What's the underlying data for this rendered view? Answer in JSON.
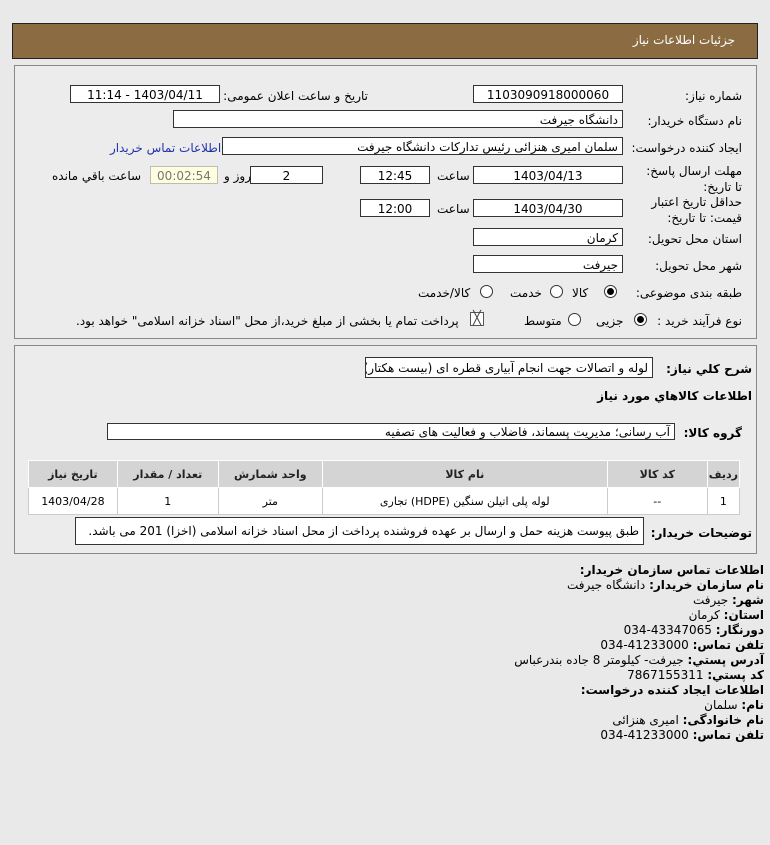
{
  "header": {
    "title": "جزئیات اطلاعات نیاز"
  },
  "form": {
    "need_number_label": "شماره نیاز:",
    "need_number": "1103090918000060",
    "announce_label": "تاریخ و ساعت اعلان عمومی:",
    "announce_value": "1403/04/11 - 11:14",
    "buyer_org_label": "نام دستگاه خریدار:",
    "buyer_org": "دانشگاه جیرفت",
    "creator_label": "ایجاد کننده درخواست:",
    "creator": "سلمان امیری هنزائی رئیس تدارکات دانشگاه جیرفت",
    "contact_link": "اطلاعات تماس خریدار",
    "deadline_label": "مهلت ارسال پاسخ: تا تاریخ:",
    "deadline_date": "1403/04/13",
    "time_label": "ساعت",
    "deadline_time": "12:45",
    "days": "2",
    "days_label": "روز و",
    "remaining": "00:02:54",
    "remaining_label": "ساعت باقي مانده",
    "validity_label": "حداقل تاریخ اعتبار قیمت: تا تاریخ:",
    "validity_date": "1403/04/30",
    "validity_time": "12:00",
    "province_label": "استان محل تحویل:",
    "province": "کرمان",
    "city_label": "شهر محل تحویل:",
    "city": "جیرفت",
    "category_label": "طبقه بندی موضوعی:",
    "category_options": [
      "کالا",
      "خدمت",
      "کالا/خدمت"
    ],
    "category_selected": "کالا",
    "process_label": "نوع فرآیند خرید :",
    "process_options": [
      "جزیی",
      "متوسط"
    ],
    "process_selected": "جزیی",
    "payment_note": "پرداخت تمام یا بخشی از مبلغ خرید،از محل \"اسناد خزانه اسلامی\" خواهد بود."
  },
  "details": {
    "summary_label": "شرح کلي نیاز:",
    "summary": "لوله و اتصالات جهت انجام آبیاری قطره ای (بیست هکتار)",
    "goods_title": "اطلاعات کالاهاي مورد نیاز",
    "group_label": "گروه کالا:",
    "group": "آب رسانی؛ مدیریت پسماند، فاضلاب و فعالیت های تصفیه",
    "table": {
      "headers": [
        "ردیف",
        "کد کالا",
        "نام کالا",
        "واحد شمارش",
        "تعداد / مقدار",
        "تاریخ نیاز"
      ],
      "rows": [
        [
          "1",
          "--",
          "لوله پلی اتیلن سنگین (HDPE) تجاری",
          "متر",
          "1",
          "1403/04/28"
        ]
      ]
    },
    "buyer_notes_label": "توضیحات خریدار:",
    "buyer_notes": "طبق پیوست هزینه حمل و ارسال بر عهده فروشنده پرداخت از محل اسناد خزانه اسلامی (اخزا) 201 می باشد."
  },
  "contact": {
    "title": "اطلاعات تماس سازمان خریدار:",
    "org_k": "نام سازمان خریدار:",
    "org_v": "دانشگاه جیرفت",
    "city_k": "شهر:",
    "city_v": "جیرفت",
    "province_k": "استان:",
    "province_v": "کرمان",
    "fax_k": "دورنگار:",
    "fax_v": "034-43347065",
    "phone_k": "تلفن تماس:",
    "phone_v": "034-41233000",
    "address_k": "آدرس پستي:",
    "address_v": "جیرفت- کیلومتر 8 جاده بندرعباس",
    "postal_k": "کد پستي:",
    "postal_v": "7867155311",
    "creator_title": "اطلاعات ایجاد کننده درخواست:",
    "name_k": "نام:",
    "name_v": "سلمان",
    "family_k": "نام خانوادگی:",
    "family_v": "امیری هنزائی",
    "cphone_k": "تلفن تماس:",
    "cphone_v": "034-41233000"
  }
}
